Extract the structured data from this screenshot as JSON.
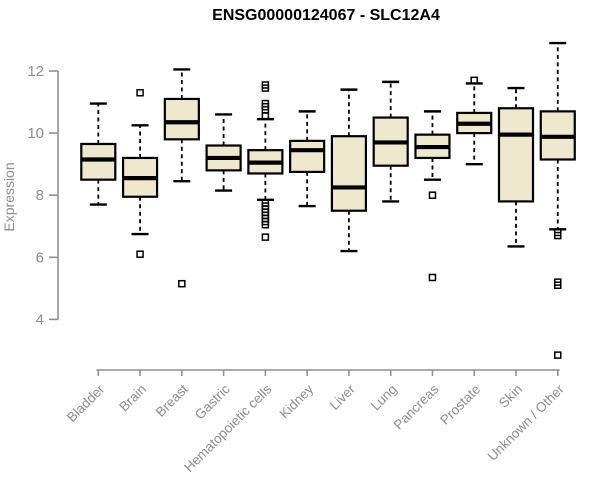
{
  "chart_data": {
    "type": "boxplot",
    "title": "ENSG00000124067 - SLC12A4",
    "ylabel": "Expression",
    "xlabel": "",
    "yticks": [
      4,
      6,
      8,
      10,
      12
    ],
    "ylim": [
      2.5,
      13.2
    ],
    "grid": false,
    "legend": "none",
    "colors": {
      "box_fill": "#EEE8CD",
      "box_border": "#000000",
      "median": "#000000",
      "whisker": "#000000",
      "axis": "#919191",
      "axis_text": "#8E8E8E",
      "title_text": "#000000"
    },
    "categories": [
      "Bladder",
      "Brain",
      "Breast",
      "Gastric",
      "Hematopoietic cells",
      "Kidney",
      "Liver",
      "Lung",
      "Pancreas",
      "Prostate",
      "Skin",
      "Unknown / Other"
    ],
    "series": [
      {
        "name": "Bladder",
        "whisker_low": 7.7,
        "q1": 8.5,
        "median": 9.15,
        "q3": 9.65,
        "whisker_high": 10.95,
        "outliers": []
      },
      {
        "name": "Brain",
        "whisker_low": 6.75,
        "q1": 7.95,
        "median": 8.55,
        "q3": 9.2,
        "whisker_high": 10.25,
        "outliers": [
          11.3,
          6.1
        ]
      },
      {
        "name": "Breast",
        "whisker_low": 8.45,
        "q1": 9.8,
        "median": 10.35,
        "q3": 11.1,
        "whisker_high": 12.05,
        "outliers": [
          5.15
        ]
      },
      {
        "name": "Gastric",
        "whisker_low": 8.15,
        "q1": 8.8,
        "median": 9.2,
        "q3": 9.6,
        "whisker_high": 10.6,
        "outliers": []
      },
      {
        "name": "Hematopoietic cells",
        "whisker_low": 7.85,
        "q1": 8.7,
        "median": 9.05,
        "q3": 9.45,
        "whisker_high": 10.45,
        "outliers": [
          11.55,
          11.45,
          10.95,
          10.85,
          10.75,
          10.55,
          7.75,
          7.65,
          7.55,
          7.45,
          7.35,
          7.25,
          7.15,
          7.05,
          6.65
        ]
      },
      {
        "name": "Kidney",
        "whisker_low": 7.65,
        "q1": 8.75,
        "median": 9.45,
        "q3": 9.75,
        "whisker_high": 10.7,
        "outliers": []
      },
      {
        "name": "Liver",
        "whisker_low": 6.2,
        "q1": 7.5,
        "median": 8.25,
        "q3": 9.9,
        "whisker_high": 11.4,
        "outliers": []
      },
      {
        "name": "Lung",
        "whisker_low": 7.8,
        "q1": 8.95,
        "median": 9.7,
        "q3": 10.5,
        "whisker_high": 11.65,
        "outliers": []
      },
      {
        "name": "Pancreas",
        "whisker_low": 8.5,
        "q1": 9.2,
        "median": 9.55,
        "q3": 9.95,
        "whisker_high": 10.7,
        "outliers": [
          8.0,
          5.35
        ]
      },
      {
        "name": "Prostate",
        "whisker_low": 9.0,
        "q1": 10.0,
        "median": 10.3,
        "q3": 10.65,
        "whisker_high": 11.6,
        "outliers": [
          11.7
        ]
      },
      {
        "name": "Skin",
        "whisker_low": 6.35,
        "q1": 7.8,
        "median": 9.95,
        "q3": 10.8,
        "whisker_high": 11.45,
        "outliers": []
      },
      {
        "name": "Unknown / Other",
        "whisker_low": 6.9,
        "q1": 9.15,
        "median": 9.88,
        "q3": 10.7,
        "whisker_high": 12.9,
        "outliers": [
          6.8,
          6.7,
          5.2,
          5.1,
          2.85
        ]
      }
    ]
  }
}
